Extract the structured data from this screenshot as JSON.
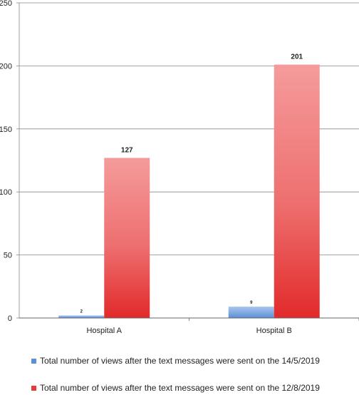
{
  "chart_data": {
    "type": "bar",
    "categories": [
      "Hospital A",
      "Hospital B"
    ],
    "series": [
      {
        "name": "Total number of views after the text messages were sent on the 14/5/2019",
        "values": [
          2,
          9
        ],
        "color": "#5b8fd6"
      },
      {
        "name": "Total number of views after the text messages were sent on the 12/8/2019",
        "values": [
          127,
          201
        ],
        "color": "#e63b3b"
      }
    ],
    "ylim": [
      0,
      250
    ],
    "yticks": [
      "0",
      "50",
      "100",
      "150",
      "200",
      "250"
    ],
    "data_labels": [
      [
        "2",
        "9"
      ],
      [
        "127",
        "201"
      ]
    ],
    "grid": true,
    "legend_position": "bottom"
  }
}
